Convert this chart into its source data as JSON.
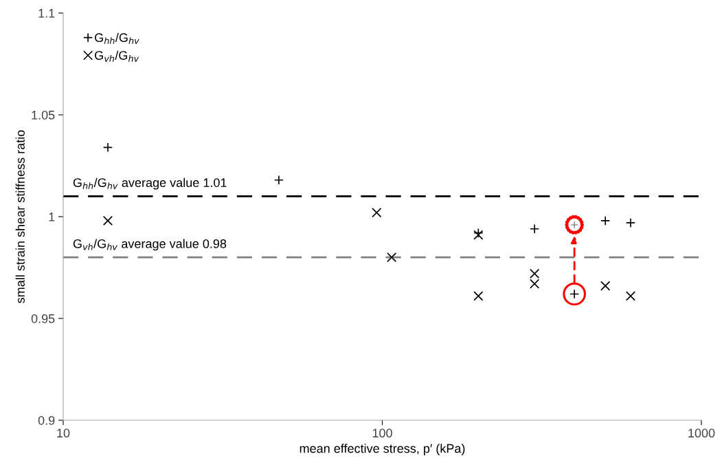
{
  "chart_data": {
    "type": "scatter",
    "xlabel": "mean effective stress, p′ (kPa)",
    "ylabel": "small strain shear stiffness ratio",
    "log": "x",
    "xlim": [
      10,
      1000
    ],
    "xticks": [
      10,
      100,
      1000
    ],
    "ylim": [
      0.9,
      1.1
    ],
    "yticks": [
      0.9,
      0.95,
      1,
      1.05,
      1.1
    ],
    "grid": false,
    "legend": "top left",
    "series": [
      {
        "name": "G$_{hh}$/G$_{hv}$",
        "color": "#000000",
        "marker": "plus",
        "x": [
          13.8,
          47.4,
          200,
          300,
          400,
          500,
          600
        ],
        "values": [
          1.034,
          1.018,
          0.992,
          0.994,
          0.962,
          0.998,
          0.997
        ]
      },
      {
        "name": "G$_{vh}$/G$_{hv}$",
        "color": "#000000",
        "marker": "cross",
        "x": [
          13.8,
          96,
          107,
          200,
          200,
          300,
          300,
          500,
          600
        ],
        "values": [
          0.998,
          1.002,
          0.98,
          0.991,
          0.961,
          0.972,
          0.967,
          0.966,
          0.961
        ]
      }
    ],
    "ref_lines": [
      {
        "axis": "y",
        "value": 1.01,
        "label": "G$_{hh}$/G$_{hv}$ average value 1.01",
        "color": "#000000",
        "line_style": "dashed"
      },
      {
        "axis": "y",
        "value": 0.98,
        "label": "G$_{vh}$/G$_{hv}$ average value 0.98",
        "color": "#808080",
        "line_style": "dashed"
      }
    ]
  }
}
